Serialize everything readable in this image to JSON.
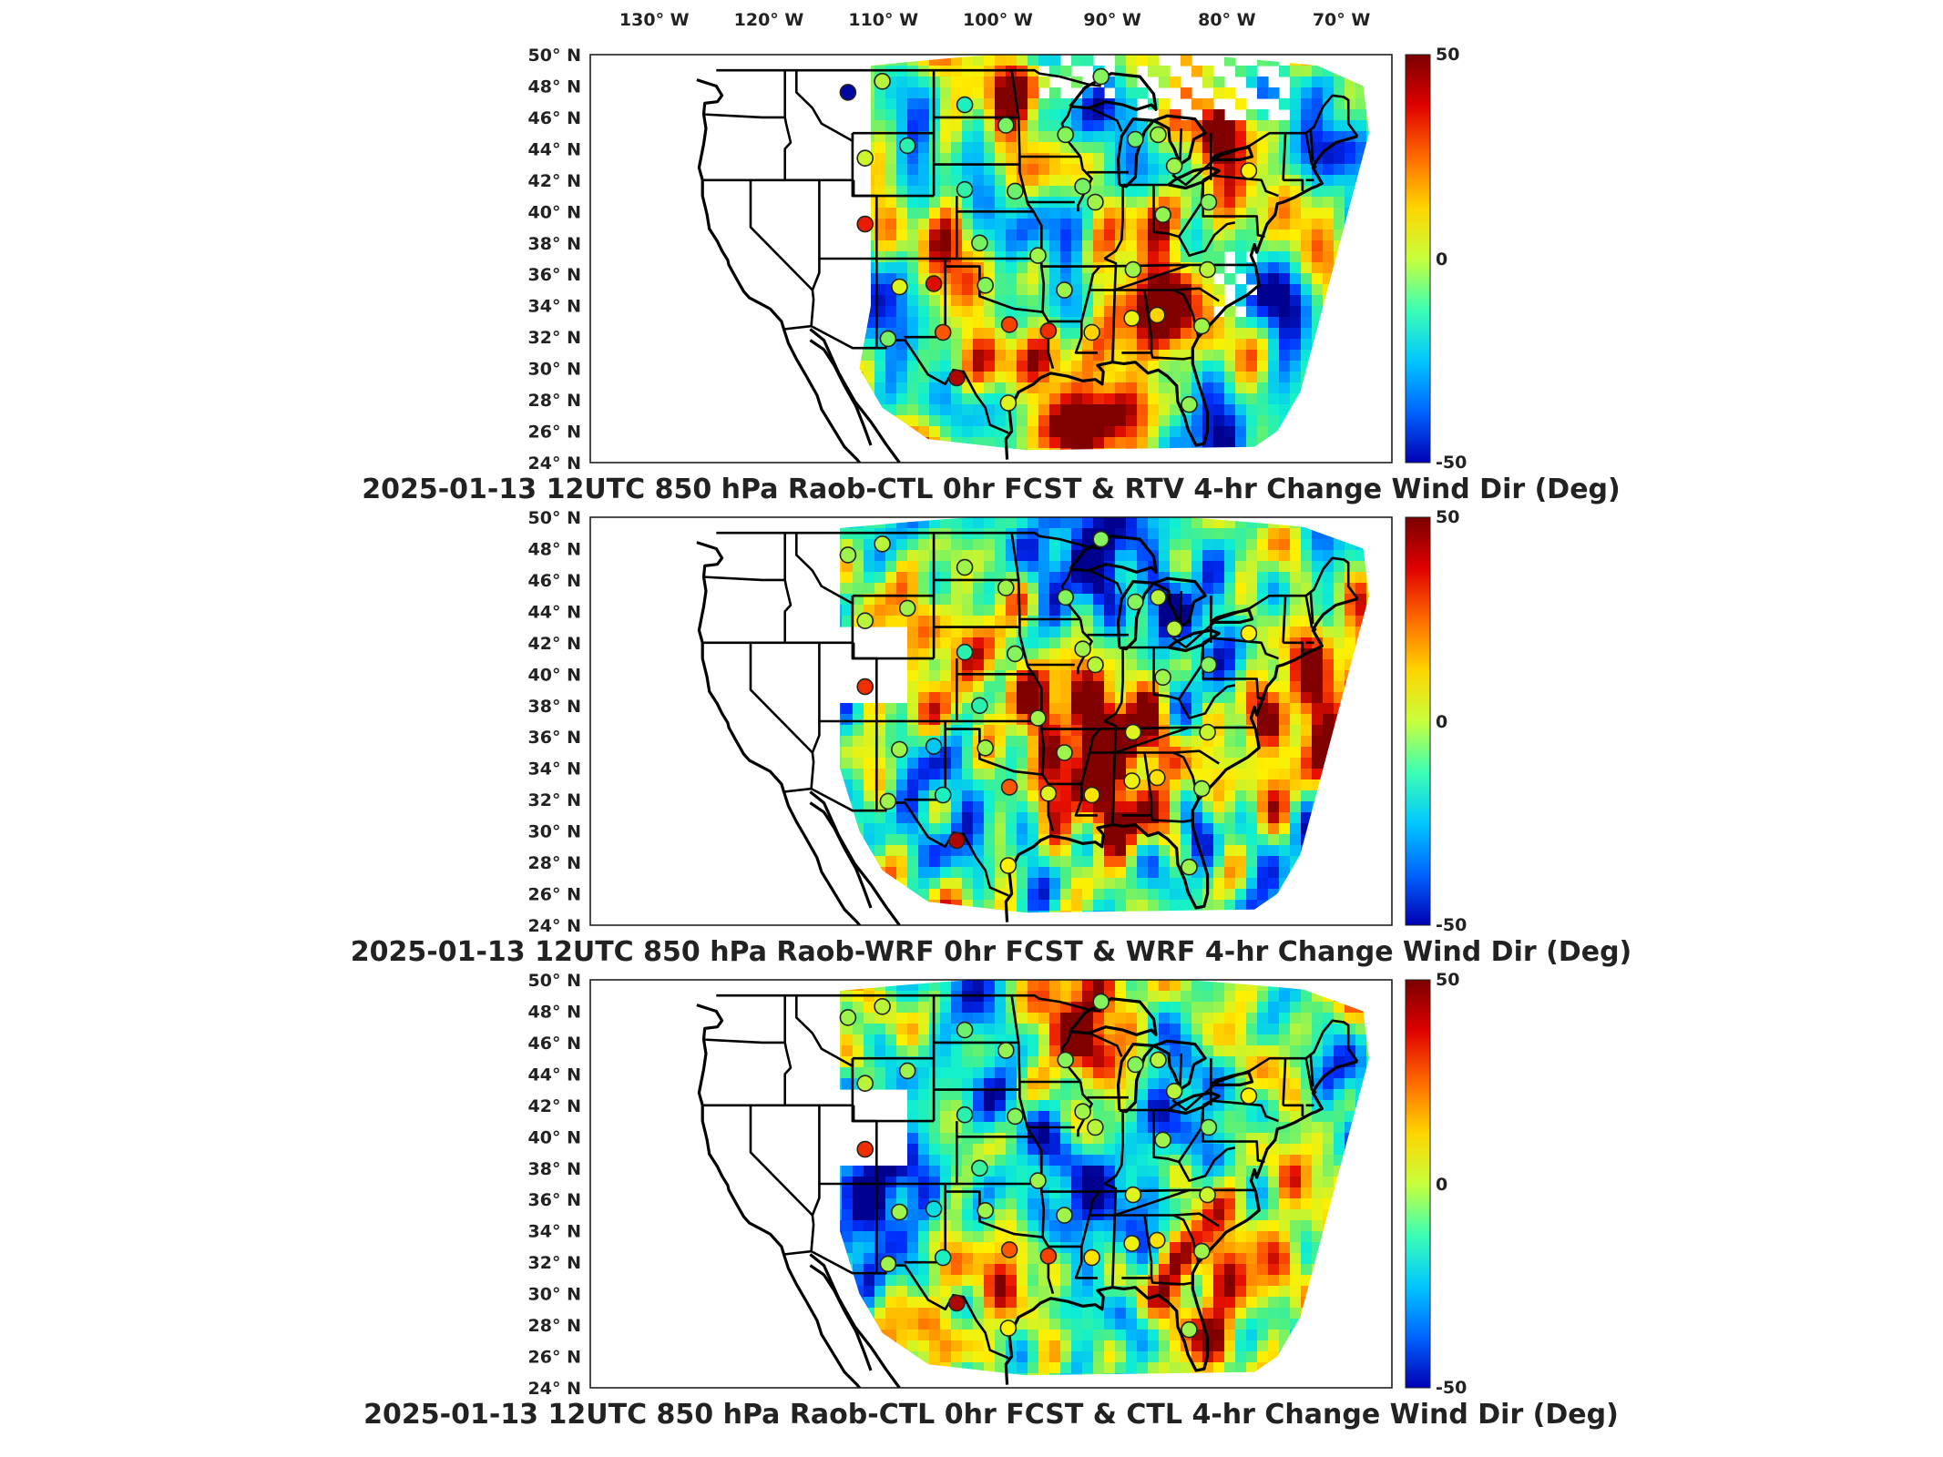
{
  "lon_labels": [
    "130° W",
    "120° W",
    "110° W",
    "100° W",
    "90° W",
    "80° W",
    "70° W"
  ],
  "lat_labels": [
    "50° N",
    "48° N",
    "46° N",
    "44° N",
    "42° N",
    "40° N",
    "38° N",
    "36° N",
    "34° N",
    "32° N",
    "30° N",
    "28° N",
    "26° N",
    "24° N"
  ],
  "colorbar": {
    "max_label": "50",
    "mid_label": "0",
    "min_label": "-50",
    "colors": [
      "#7a0000",
      "#e00000",
      "#ff6a00",
      "#ffd400",
      "#c8ff3c",
      "#3cffb4",
      "#00c8ff",
      "#0064ff",
      "#0000b4"
    ]
  },
  "panels": [
    {
      "title": "2025-01-13 12UTC 850 hPa Raob-CTL 0hr FCST & RTV 4-hr Change Wind Dir (Deg)",
      "variant": "rtv",
      "stations": [
        {
          "lon": -111.5,
          "lat": 47.6,
          "value": -48
        },
        {
          "lon": -108.5,
          "lat": 48.3,
          "value": 8
        },
        {
          "lon": -101.3,
          "lat": 46.8,
          "value": -8
        },
        {
          "lon": -97.7,
          "lat": 45.5,
          "value": 3
        },
        {
          "lon": -92.5,
          "lat": 44.9,
          "value": 4
        },
        {
          "lon": -86.4,
          "lat": 44.6,
          "value": 2
        },
        {
          "lon": -84.4,
          "lat": 44.9,
          "value": 6
        },
        {
          "lon": -89.4,
          "lat": 48.6,
          "value": 4
        },
        {
          "lon": -106.3,
          "lat": 44.2,
          "value": -6
        },
        {
          "lon": -110.0,
          "lat": 43.4,
          "value": 10
        },
        {
          "lon": -101.3,
          "lat": 41.4,
          "value": -5
        },
        {
          "lon": -96.9,
          "lat": 41.3,
          "value": 2
        },
        {
          "lon": -89.9,
          "lat": 40.6,
          "value": 6
        },
        {
          "lon": -91.0,
          "lat": 41.6,
          "value": 3
        },
        {
          "lon": -83.0,
          "lat": 42.9,
          "value": 6
        },
        {
          "lon": -80.0,
          "lat": 40.6,
          "value": 4
        },
        {
          "lon": -84.0,
          "lat": 39.8,
          "value": 5
        },
        {
          "lon": -76.5,
          "lat": 42.6,
          "value": 16
        },
        {
          "lon": -110.0,
          "lat": 39.2,
          "value": 40
        },
        {
          "lon": -104.0,
          "lat": 35.4,
          "value": 42
        },
        {
          "lon": -100.0,
          "lat": 38.0,
          "value": 3
        },
        {
          "lon": -94.9,
          "lat": 37.2,
          "value": 6
        },
        {
          "lon": -99.5,
          "lat": 35.3,
          "value": 4
        },
        {
          "lon": -92.6,
          "lat": 35.0,
          "value": 6
        },
        {
          "lon": -86.6,
          "lat": 36.3,
          "value": 6
        },
        {
          "lon": -80.1,
          "lat": 36.3,
          "value": 8
        },
        {
          "lon": -107.0,
          "lat": 35.2,
          "value": 12
        },
        {
          "lon": -108.0,
          "lat": 31.9,
          "value": 3
        },
        {
          "lon": -103.2,
          "lat": 32.3,
          "value": 34
        },
        {
          "lon": -97.4,
          "lat": 32.8,
          "value": 36
        },
        {
          "lon": -94.0,
          "lat": 32.4,
          "value": 38
        },
        {
          "lon": -90.2,
          "lat": 32.3,
          "value": 20
        },
        {
          "lon": -86.7,
          "lat": 33.2,
          "value": 14
        },
        {
          "lon": -84.5,
          "lat": 33.4,
          "value": 20
        },
        {
          "lon": -80.6,
          "lat": 32.7,
          "value": 6
        },
        {
          "lon": -102.0,
          "lat": 29.4,
          "value": 46
        },
        {
          "lon": -97.5,
          "lat": 27.8,
          "value": 12
        },
        {
          "lon": -81.7,
          "lat": 27.7,
          "value": 5
        }
      ]
    },
    {
      "title": "2025-01-13 12UTC 850 hPa Raob-WRF 0hr FCST & WRF 4-hr Change Wind Dir (Deg)",
      "variant": "wrf",
      "stations": [
        {
          "lon": -111.5,
          "lat": 47.6,
          "value": 6
        },
        {
          "lon": -108.5,
          "lat": 48.3,
          "value": 8
        },
        {
          "lon": -101.3,
          "lat": 46.8,
          "value": 6
        },
        {
          "lon": -97.7,
          "lat": 45.5,
          "value": 6
        },
        {
          "lon": -92.5,
          "lat": 44.9,
          "value": 4
        },
        {
          "lon": -86.4,
          "lat": 44.6,
          "value": 4
        },
        {
          "lon": -84.4,
          "lat": 44.9,
          "value": 8
        },
        {
          "lon": -89.4,
          "lat": 48.6,
          "value": 4
        },
        {
          "lon": -106.3,
          "lat": 44.2,
          "value": 6
        },
        {
          "lon": -110.0,
          "lat": 43.4,
          "value": 8
        },
        {
          "lon": -101.3,
          "lat": 41.4,
          "value": -6
        },
        {
          "lon": -96.9,
          "lat": 41.3,
          "value": 4
        },
        {
          "lon": -89.9,
          "lat": 40.6,
          "value": 8
        },
        {
          "lon": -91.0,
          "lat": 41.6,
          "value": 6
        },
        {
          "lon": -83.0,
          "lat": 42.9,
          "value": 8
        },
        {
          "lon": -80.0,
          "lat": 40.6,
          "value": 4
        },
        {
          "lon": -84.0,
          "lat": 39.8,
          "value": 6
        },
        {
          "lon": -76.5,
          "lat": 42.6,
          "value": 16
        },
        {
          "lon": -110.0,
          "lat": 39.2,
          "value": 38
        },
        {
          "lon": -104.0,
          "lat": 35.4,
          "value": -18
        },
        {
          "lon": -100.0,
          "lat": 38.0,
          "value": -6
        },
        {
          "lon": -94.9,
          "lat": 37.2,
          "value": 6
        },
        {
          "lon": -99.5,
          "lat": 35.3,
          "value": 6
        },
        {
          "lon": -92.6,
          "lat": 35.0,
          "value": 6
        },
        {
          "lon": -86.6,
          "lat": 36.3,
          "value": 12
        },
        {
          "lon": -80.1,
          "lat": 36.3,
          "value": 10
        },
        {
          "lon": -107.0,
          "lat": 35.2,
          "value": 6
        },
        {
          "lon": -108.0,
          "lat": 31.9,
          "value": 6
        },
        {
          "lon": -103.2,
          "lat": 32.3,
          "value": -8
        },
        {
          "lon": -97.4,
          "lat": 32.8,
          "value": 34
        },
        {
          "lon": -94.0,
          "lat": 32.4,
          "value": 12
        },
        {
          "lon": -90.2,
          "lat": 32.3,
          "value": 18
        },
        {
          "lon": -86.7,
          "lat": 33.2,
          "value": 14
        },
        {
          "lon": -84.5,
          "lat": 33.4,
          "value": 18
        },
        {
          "lon": -80.6,
          "lat": 32.7,
          "value": 6
        },
        {
          "lon": -102.0,
          "lat": 29.4,
          "value": 46
        },
        {
          "lon": -97.5,
          "lat": 27.8,
          "value": 16
        },
        {
          "lon": -81.7,
          "lat": 27.7,
          "value": 6
        }
      ]
    },
    {
      "title": "2025-01-13 12UTC 850 hPa Raob-CTL 0hr FCST & CTL 4-hr Change Wind Dir (Deg)",
      "variant": "ctl",
      "stations": [
        {
          "lon": -111.5,
          "lat": 47.6,
          "value": 6
        },
        {
          "lon": -108.5,
          "lat": 48.3,
          "value": 8
        },
        {
          "lon": -101.3,
          "lat": 46.8,
          "value": 2
        },
        {
          "lon": -97.7,
          "lat": 45.5,
          "value": 5
        },
        {
          "lon": -92.5,
          "lat": 44.9,
          "value": 4
        },
        {
          "lon": -86.4,
          "lat": 44.6,
          "value": 4
        },
        {
          "lon": -84.4,
          "lat": 44.9,
          "value": 8
        },
        {
          "lon": -89.4,
          "lat": 48.6,
          "value": 4
        },
        {
          "lon": -106.3,
          "lat": 44.2,
          "value": 6
        },
        {
          "lon": -110.0,
          "lat": 43.4,
          "value": 8
        },
        {
          "lon": -101.3,
          "lat": 41.4,
          "value": -6
        },
        {
          "lon": -96.9,
          "lat": 41.3,
          "value": 4
        },
        {
          "lon": -89.9,
          "lat": 40.6,
          "value": 8
        },
        {
          "lon": -91.0,
          "lat": 41.6,
          "value": 6
        },
        {
          "lon": -83.0,
          "lat": 42.9,
          "value": 8
        },
        {
          "lon": -80.0,
          "lat": 40.6,
          "value": 4
        },
        {
          "lon": -84.0,
          "lat": 39.8,
          "value": 6
        },
        {
          "lon": -76.5,
          "lat": 42.6,
          "value": 16
        },
        {
          "lon": -110.0,
          "lat": 39.2,
          "value": 38
        },
        {
          "lon": -104.0,
          "lat": 35.4,
          "value": -14
        },
        {
          "lon": -100.0,
          "lat": 38.0,
          "value": -4
        },
        {
          "lon": -94.9,
          "lat": 37.2,
          "value": 6
        },
        {
          "lon": -99.5,
          "lat": 35.3,
          "value": 6
        },
        {
          "lon": -92.6,
          "lat": 35.0,
          "value": 6
        },
        {
          "lon": -86.6,
          "lat": 36.3,
          "value": 12
        },
        {
          "lon": -80.1,
          "lat": 36.3,
          "value": 10
        },
        {
          "lon": -107.0,
          "lat": 35.2,
          "value": 6
        },
        {
          "lon": -108.0,
          "lat": 31.9,
          "value": 6
        },
        {
          "lon": -103.2,
          "lat": 32.3,
          "value": -8
        },
        {
          "lon": -97.4,
          "lat": 32.8,
          "value": 34
        },
        {
          "lon": -94.0,
          "lat": 32.4,
          "value": 36
        },
        {
          "lon": -90.2,
          "lat": 32.3,
          "value": 18
        },
        {
          "lon": -86.7,
          "lat": 33.2,
          "value": 14
        },
        {
          "lon": -84.5,
          "lat": 33.4,
          "value": 18
        },
        {
          "lon": -80.6,
          "lat": 32.7,
          "value": 6
        },
        {
          "lon": -102.0,
          "lat": 29.4,
          "value": 46
        },
        {
          "lon": -97.5,
          "lat": 27.8,
          "value": 16
        },
        {
          "lon": -81.7,
          "lat": 27.7,
          "value": 6
        }
      ]
    }
  ]
}
